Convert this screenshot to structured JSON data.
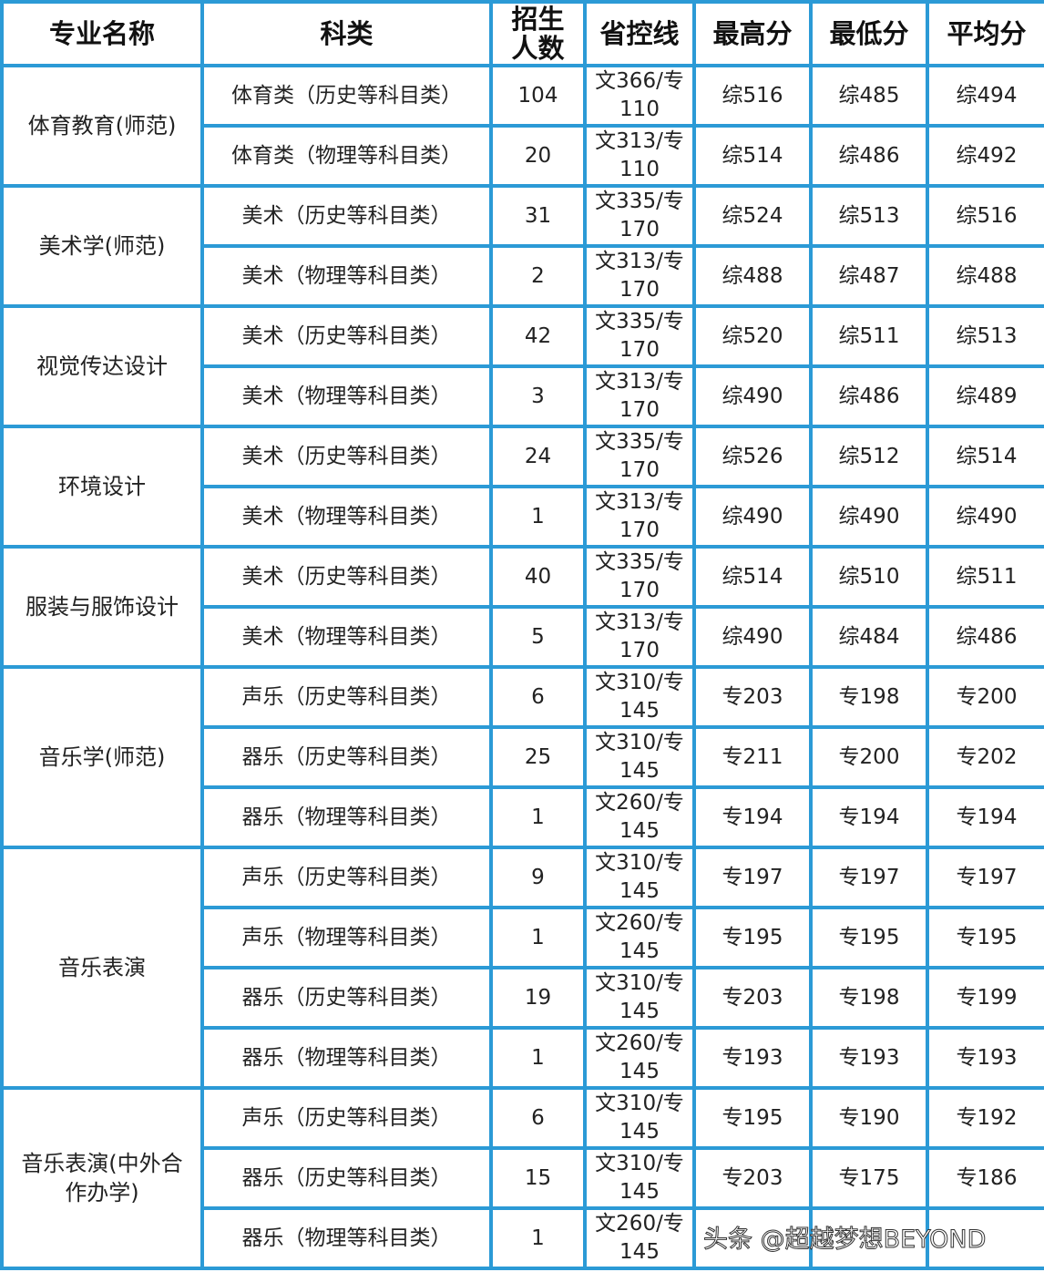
{
  "headers": [
    "专业名称",
    "科类",
    "招生人数",
    "省控线",
    "最高分",
    "最低分",
    "平均分"
  ],
  "groups": [
    {
      "major": "体育教育(师范)",
      "rows": [
        [
          "体育类（历史等科目类）",
          "104",
          "文366/专110",
          "综516",
          "综485",
          "综494"
        ],
        [
          "体育类（物理等科目类）",
          "20",
          "文313/专110",
          "综514",
          "综486",
          "综492"
        ]
      ]
    },
    {
      "major": "美术学(师范)",
      "rows": [
        [
          "美术（历史等科目类）",
          "31",
          "文335/专170",
          "综524",
          "综513",
          "综516"
        ],
        [
          "美术（物理等科目类）",
          "2",
          "文313/专170",
          "综488",
          "综487",
          "综488"
        ]
      ]
    },
    {
      "major": "视觉传达设计",
      "rows": [
        [
          "美术（历史等科目类）",
          "42",
          "文335/专170",
          "综520",
          "综511",
          "综513"
        ],
        [
          "美术（物理等科目类）",
          "3",
          "文313/专170",
          "综490",
          "综486",
          "综489"
        ]
      ]
    },
    {
      "major": "环境设计",
      "rows": [
        [
          "美术（历史等科目类）",
          "24",
          "文335/专170",
          "综526",
          "综512",
          "综514"
        ],
        [
          "美术（物理等科目类）",
          "1",
          "文313/专170",
          "综490",
          "综490",
          "综490"
        ]
      ]
    },
    {
      "major": "服装与服饰设计",
      "rows": [
        [
          "美术（历史等科目类）",
          "40",
          "文335/专170",
          "综514",
          "综510",
          "综511"
        ],
        [
          "美术（物理等科目类）",
          "5",
          "文313/专170",
          "综490",
          "综484",
          "综486"
        ]
      ]
    },
    {
      "major": "音乐学(师范)",
      "rows": [
        [
          "声乐（历史等科目类）",
          "6",
          "文310/专145",
          "专203",
          "专198",
          "专200"
        ],
        [
          "器乐（历史等科目类）",
          "25",
          "文310/专145",
          "专211",
          "专200",
          "专202"
        ],
        [
          "器乐（物理等科目类）",
          "1",
          "文260/专145",
          "专194",
          "专194",
          "专194"
        ]
      ]
    },
    {
      "major": "音乐表演",
      "rows": [
        [
          "声乐（历史等科目类）",
          "9",
          "文310/专145",
          "专197",
          "专197",
          "专197"
        ],
        [
          "声乐（物理等科目类）",
          "1",
          "文260/专145",
          "专195",
          "专195",
          "专195"
        ],
        [
          "器乐（历史等科目类）",
          "19",
          "文310/专145",
          "专203",
          "专198",
          "专199"
        ],
        [
          "器乐（物理等科目类）",
          "1",
          "文260/专145",
          "专193",
          "专193",
          "专193"
        ]
      ]
    },
    {
      "major": "音乐表演(中外合作办学)",
      "rows": [
        [
          "声乐（历史等科目类）",
          "6",
          "文310/专145",
          "专195",
          "专190",
          "专192"
        ],
        [
          "器乐（历史等科目类）",
          "15",
          "文310/专145",
          "专203",
          "专175",
          "专186"
        ],
        [
          "器乐（物理等科目类）",
          "1",
          "文260/专145",
          "",
          "",
          ""
        ]
      ]
    }
  ],
  "watermark": "头条 @超越梦想BEYOND",
  "colors": {
    "border": "#2b9ad6"
  }
}
